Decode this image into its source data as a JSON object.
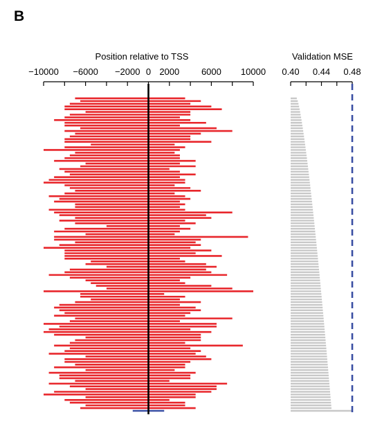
{
  "panel_label": "B",
  "chart_data": [
    {
      "type": "bar",
      "orientation": "horizontal-range",
      "title": "",
      "xlabel": "Position relative to TSS",
      "ylabel": "",
      "xlim": [
        -10000,
        10000
      ],
      "xticks": [
        -10000,
        -6000,
        -2000,
        0,
        2000,
        6000,
        10000
      ],
      "xtick_labels": [
        "−10000",
        "−6000",
        "−2000",
        "0",
        "2000",
        "6000",
        "10000"
      ],
      "reference_line_x": 0,
      "colors": {
        "window": "#e8262b",
        "best_window": "#3a4fa3",
        "tss_line": "#000000"
      },
      "windows": [
        [
          -7000,
          3500
        ],
        [
          -6500,
          5000
        ],
        [
          -7500,
          4000
        ],
        [
          -8000,
          6000
        ],
        [
          -8000,
          7000
        ],
        [
          -6000,
          4000
        ],
        [
          -7500,
          4000
        ],
        [
          -8000,
          3000
        ],
        [
          -9000,
          4000
        ],
        [
          -8000,
          5500
        ],
        [
          -8000,
          3000
        ],
        [
          -6500,
          6500
        ],
        [
          -8000,
          8000
        ],
        [
          -7000,
          5000
        ],
        [
          -7500,
          4000
        ],
        [
          -8000,
          4000
        ],
        [
          -8000,
          6000
        ],
        [
          -5500,
          2500
        ],
        [
          -8000,
          3500
        ],
        [
          -10000,
          3000
        ],
        [
          -7000,
          2500
        ],
        [
          -7500,
          3000
        ],
        [
          -8000,
          3000
        ],
        [
          -9000,
          4500
        ],
        [
          -6000,
          3000
        ],
        [
          -6500,
          4500
        ],
        [
          -8500,
          2000
        ],
        [
          -8000,
          3000
        ],
        [
          -7500,
          4500
        ],
        [
          -9000,
          3000
        ],
        [
          -9500,
          3500
        ],
        [
          -10000,
          3500
        ],
        [
          -8000,
          2500
        ],
        [
          -7500,
          4000
        ],
        [
          -7000,
          5000
        ],
        [
          -8000,
          2500
        ],
        [
          -9500,
          3500
        ],
        [
          -8500,
          4000
        ],
        [
          -9000,
          3000
        ],
        [
          -7000,
          3500
        ],
        [
          -7000,
          3000
        ],
        [
          -9500,
          3500
        ],
        [
          -9000,
          8000
        ],
        [
          -8500,
          5500
        ],
        [
          -7000,
          6000
        ],
        [
          -8500,
          3500
        ],
        [
          -7000,
          4500
        ],
        [
          -4000,
          3000
        ],
        [
          -8000,
          4000
        ],
        [
          -9000,
          3000
        ],
        [
          -6000,
          2500
        ],
        [
          -9000,
          9500
        ],
        [
          -9000,
          5000
        ],
        [
          -7000,
          4500
        ],
        [
          -8500,
          5000
        ],
        [
          -10000,
          4000
        ],
        [
          -8000,
          6000
        ],
        [
          -8000,
          4500
        ],
        [
          -8000,
          7000
        ],
        [
          -8000,
          3000
        ],
        [
          -5500,
          3500
        ],
        [
          -6000,
          5500
        ],
        [
          -4000,
          6500
        ],
        [
          -7500,
          5500
        ],
        [
          -8000,
          6000
        ],
        [
          -9500,
          7500
        ],
        [
          -7500,
          4000
        ],
        [
          -6000,
          3000
        ],
        [
          -5500,
          3500
        ],
        [
          -5000,
          6000
        ],
        [
          -4000,
          8000
        ],
        [
          -10000,
          10000
        ],
        [
          -6500,
          1500
        ],
        [
          -6500,
          3500
        ],
        [
          -5500,
          3000
        ],
        [
          -7000,
          5000
        ],
        [
          -8500,
          3000
        ],
        [
          -9000,
          4500
        ],
        [
          -8500,
          5000
        ],
        [
          -8000,
          4000
        ],
        [
          -9000,
          3500
        ],
        [
          -7000,
          8000
        ],
        [
          -7500,
          3000
        ],
        [
          -10000,
          6500
        ],
        [
          -8500,
          6500
        ],
        [
          -9500,
          4000
        ],
        [
          -10000,
          6000
        ],
        [
          -9000,
          5000
        ],
        [
          -6000,
          5000
        ],
        [
          -7000,
          5000
        ],
        [
          -7500,
          3500
        ],
        [
          -9000,
          9000
        ],
        [
          -7500,
          4000
        ],
        [
          -8000,
          5000
        ],
        [
          -9500,
          4500
        ],
        [
          -6000,
          5500
        ],
        [
          -8000,
          6000
        ],
        [
          -8000,
          4000
        ],
        [
          -7000,
          3500
        ],
        [
          -9000,
          3500
        ],
        [
          -6000,
          2500
        ],
        [
          -9500,
          4500
        ],
        [
          -8500,
          4000
        ],
        [
          -8500,
          4000
        ],
        [
          -7000,
          2000
        ],
        [
          -9500,
          7500
        ],
        [
          -7500,
          6500
        ],
        [
          -6000,
          6500
        ],
        [
          -9000,
          6000
        ],
        [
          -10000,
          4500
        ],
        [
          -6000,
          4500
        ],
        [
          -8000,
          2000
        ],
        [
          -7500,
          3500
        ],
        [
          -6000,
          3500
        ],
        [
          -6500,
          4500
        ]
      ],
      "best_window": [
        -1500,
        1500
      ]
    },
    {
      "type": "bar",
      "orientation": "horizontal",
      "title": "",
      "xlabel": "Validation MSE",
      "ylabel": "",
      "xlim": [
        0.4,
        0.48
      ],
      "xticks": [
        0.4,
        0.44,
        0.48
      ],
      "xtick_labels": [
        "0.40",
        "0.44",
        "0.48"
      ],
      "reference_line_x": 0.48,
      "colors": {
        "bar": "#c8c8c8",
        "reference_line": "#3a4fa3"
      },
      "values_range": [
        0.408,
        0.453
      ],
      "last_value": 0.48
    }
  ]
}
